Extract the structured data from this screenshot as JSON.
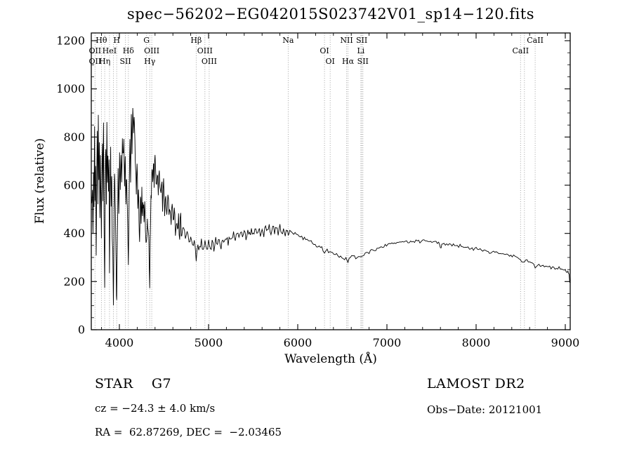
{
  "title": "spec−56202−EG042015S023742V01_sp14−120.fits",
  "annotations": {
    "class_label": "STAR    G7",
    "survey": "LAMOST DR2",
    "cz": "cz = −24.3 ± 4.0 km/s",
    "obs_date": "Obs−Date: 20121001",
    "radec": "RA =  62.87269, DEC =  −2.03465"
  },
  "chart_data": {
    "type": "line",
    "title": "spec−56202−EG042015S023742V01_sp14−120.fits",
    "xlabel": "Wavelength (Å)",
    "ylabel": "Flux (relative)",
    "xlim": [
      3685,
      9055
    ],
    "ylim": [
      0,
      1232
    ],
    "x_ticks": [
      4000,
      5000,
      6000,
      7000,
      8000,
      9000
    ],
    "y_ticks": [
      0,
      200,
      400,
      600,
      800,
      1000,
      1200
    ],
    "grid": false,
    "line_color": "#000000",
    "marker_line_color": "#999999",
    "line_markers": [
      {
        "label": "Hθ",
        "wavelength": 3798,
        "row": 0
      },
      {
        "label": "H",
        "wavelength": 3970,
        "row": 0
      },
      {
        "label": "G",
        "wavelength": 4305,
        "row": 0
      },
      {
        "label": "Hβ",
        "wavelength": 4861,
        "row": 0
      },
      {
        "label": "Na",
        "wavelength": 5893,
        "row": 0
      },
      {
        "label": "NII",
        "wavelength": 6548,
        "row": 0
      },
      {
        "label": "SII",
        "wavelength": 6717,
        "row": 0
      },
      {
        "label": "CaII",
        "wavelength": 8662,
        "row": 0
      },
      {
        "label": "OII",
        "wavelength": 3727,
        "row": 1
      },
      {
        "label": "HeI",
        "wavelength": 3889,
        "row": 1
      },
      {
        "label": "Hδ",
        "wavelength": 4101,
        "row": 1
      },
      {
        "label": "OIII",
        "wavelength": 4363,
        "row": 1
      },
      {
        "label": "OIII",
        "wavelength": 4959,
        "row": 1
      },
      {
        "label": "OI",
        "wavelength": 6300,
        "row": 1
      },
      {
        "label": "Li",
        "wavelength": 6708,
        "row": 1
      },
      {
        "label": "CaII",
        "wavelength": 8498,
        "row": 1
      },
      {
        "label": "OII",
        "wavelength": 3727,
        "row": 2
      },
      {
        "label": "Hη",
        "wavelength": 3835,
        "row": 2
      },
      {
        "label": "SII",
        "wavelength": 4068,
        "row": 2
      },
      {
        "label": "Hγ",
        "wavelength": 4340,
        "row": 2
      },
      {
        "label": "OIII",
        "wavelength": 5007,
        "row": 2
      },
      {
        "label": "OI",
        "wavelength": 6364,
        "row": 2
      },
      {
        "label": "Hα",
        "wavelength": 6563,
        "row": 2
      },
      {
        "label": "SII",
        "wavelength": 6731,
        "row": 2
      }
    ],
    "extra_marker_lines": [
      3933,
      8542
    ],
    "jitter": {
      "seed": 20121001,
      "subdivide": 2,
      "bands": [
        [
          3685,
          4700,
          40
        ],
        [
          4700,
          5900,
          16
        ],
        [
          5900,
          7000,
          8
        ],
        [
          7000,
          9060,
          6
        ]
      ]
    },
    "spectrum": [
      [
        3690,
        540
      ],
      [
        3698,
        620
      ],
      [
        3704,
        360
      ],
      [
        3710,
        680
      ],
      [
        3716,
        540
      ],
      [
        3722,
        820
      ],
      [
        3727,
        500
      ],
      [
        3734,
        700
      ],
      [
        3740,
        300
      ],
      [
        3746,
        640
      ],
      [
        3752,
        860
      ],
      [
        3758,
        560
      ],
      [
        3764,
        900
      ],
      [
        3770,
        620
      ],
      [
        3776,
        760
      ],
      [
        3782,
        430
      ],
      [
        3788,
        700
      ],
      [
        3794,
        540
      ],
      [
        3798,
        350
      ],
      [
        3804,
        660
      ],
      [
        3810,
        760
      ],
      [
        3816,
        560
      ],
      [
        3822,
        870
      ],
      [
        3828,
        420
      ],
      [
        3835,
        150
      ],
      [
        3842,
        600
      ],
      [
        3848,
        780
      ],
      [
        3854,
        540
      ],
      [
        3860,
        840
      ],
      [
        3866,
        650
      ],
      [
        3872,
        760
      ],
      [
        3878,
        600
      ],
      [
        3884,
        700
      ],
      [
        3889,
        260
      ],
      [
        3896,
        580
      ],
      [
        3902,
        720
      ],
      [
        3908,
        500
      ],
      [
        3914,
        660
      ],
      [
        3920,
        420
      ],
      [
        3926,
        300
      ],
      [
        3933,
        70
      ],
      [
        3940,
        460
      ],
      [
        3946,
        640
      ],
      [
        3952,
        540
      ],
      [
        3958,
        440
      ],
      [
        3964,
        250
      ],
      [
        3970,
        90
      ],
      [
        3978,
        420
      ],
      [
        3986,
        640
      ],
      [
        3994,
        520
      ],
      [
        4002,
        700
      ],
      [
        4010,
        580
      ],
      [
        4018,
        760
      ],
      [
        4026,
        640
      ],
      [
        4034,
        820
      ],
      [
        4042,
        700
      ],
      [
        4050,
        780
      ],
      [
        4058,
        600
      ],
      [
        4066,
        700
      ],
      [
        4074,
        540
      ],
      [
        4082,
        640
      ],
      [
        4090,
        500
      ],
      [
        4101,
        290
      ],
      [
        4110,
        560
      ],
      [
        4118,
        760
      ],
      [
        4126,
        640
      ],
      [
        4134,
        860
      ],
      [
        4142,
        740
      ],
      [
        4150,
        900
      ],
      [
        4158,
        800
      ],
      [
        4166,
        915
      ],
      [
        4174,
        780
      ],
      [
        4182,
        700
      ],
      [
        4190,
        600
      ],
      [
        4198,
        660
      ],
      [
        4206,
        540
      ],
      [
        4214,
        600
      ],
      [
        4220,
        480
      ],
      [
        4227,
        380
      ],
      [
        4236,
        560
      ],
      [
        4244,
        480
      ],
      [
        4252,
        580
      ],
      [
        4260,
        460
      ],
      [
        4268,
        540
      ],
      [
        4276,
        430
      ],
      [
        4284,
        500
      ],
      [
        4292,
        420
      ],
      [
        4305,
        330
      ],
      [
        4314,
        470
      ],
      [
        4322,
        420
      ],
      [
        4330,
        380
      ],
      [
        4340,
        190
      ],
      [
        4350,
        480
      ],
      [
        4358,
        560
      ],
      [
        4366,
        660
      ],
      [
        4374,
        600
      ],
      [
        4382,
        720
      ],
      [
        4390,
        620
      ],
      [
        4400,
        700
      ],
      [
        4412,
        600
      ],
      [
        4424,
        680
      ],
      [
        4436,
        580
      ],
      [
        4448,
        650
      ],
      [
        4460,
        560
      ],
      [
        4472,
        620
      ],
      [
        4484,
        530
      ],
      [
        4496,
        590
      ],
      [
        4508,
        510
      ],
      [
        4520,
        560
      ],
      [
        4532,
        490
      ],
      [
        4544,
        540
      ],
      [
        4556,
        470
      ],
      [
        4568,
        520
      ],
      [
        4580,
        455
      ],
      [
        4592,
        500
      ],
      [
        4604,
        440
      ],
      [
        4616,
        485
      ],
      [
        4628,
        430
      ],
      [
        4640,
        470
      ],
      [
        4652,
        420
      ],
      [
        4664,
        455
      ],
      [
        4676,
        410
      ],
      [
        4688,
        445
      ],
      [
        4700,
        405
      ],
      [
        4720,
        430
      ],
      [
        4740,
        380
      ],
      [
        4760,
        420
      ],
      [
        4780,
        360
      ],
      [
        4800,
        400
      ],
      [
        4820,
        345
      ],
      [
        4840,
        385
      ],
      [
        4861,
        280
      ],
      [
        4880,
        360
      ],
      [
        4900,
        330
      ],
      [
        4920,
        365
      ],
      [
        4940,
        320
      ],
      [
        4960,
        355
      ],
      [
        4980,
        325
      ],
      [
        5000,
        360
      ],
      [
        5020,
        330
      ],
      [
        5040,
        365
      ],
      [
        5060,
        335
      ],
      [
        5080,
        370
      ],
      [
        5100,
        345
      ],
      [
        5120,
        375
      ],
      [
        5140,
        350
      ],
      [
        5160,
        380
      ],
      [
        5180,
        355
      ],
      [
        5200,
        385
      ],
      [
        5220,
        360
      ],
      [
        5240,
        390
      ],
      [
        5260,
        365
      ],
      [
        5280,
        395
      ],
      [
        5300,
        370
      ],
      [
        5320,
        400
      ],
      [
        5340,
        375
      ],
      [
        5360,
        405
      ],
      [
        5380,
        380
      ],
      [
        5400,
        410
      ],
      [
        5420,
        385
      ],
      [
        5440,
        415
      ],
      [
        5460,
        390
      ],
      [
        5480,
        420
      ],
      [
        5500,
        395
      ],
      [
        5520,
        420
      ],
      [
        5540,
        395
      ],
      [
        5560,
        425
      ],
      [
        5580,
        400
      ],
      [
        5600,
        430
      ],
      [
        5620,
        400
      ],
      [
        5640,
        430
      ],
      [
        5660,
        405
      ],
      [
        5680,
        430
      ],
      [
        5700,
        405
      ],
      [
        5720,
        430
      ],
      [
        5740,
        405
      ],
      [
        5760,
        425
      ],
      [
        5780,
        400
      ],
      [
        5800,
        425
      ],
      [
        5820,
        400
      ],
      [
        5840,
        420
      ],
      [
        5860,
        395
      ],
      [
        5880,
        415
      ],
      [
        5893,
        385
      ],
      [
        5910,
        405
      ],
      [
        5940,
        395
      ],
      [
        5970,
        400
      ],
      [
        6000,
        390
      ],
      [
        6030,
        385
      ],
      [
        6060,
        380
      ],
      [
        6090,
        372
      ],
      [
        6120,
        376
      ],
      [
        6150,
        365
      ],
      [
        6180,
        360
      ],
      [
        6210,
        352
      ],
      [
        6240,
        348
      ],
      [
        6270,
        340
      ],
      [
        6300,
        325
      ],
      [
        6330,
        330
      ],
      [
        6360,
        318
      ],
      [
        6390,
        322
      ],
      [
        6420,
        312
      ],
      [
        6450,
        308
      ],
      [
        6480,
        302
      ],
      [
        6510,
        298
      ],
      [
        6540,
        296
      ],
      [
        6563,
        286
      ],
      [
        6590,
        298
      ],
      [
        6620,
        302
      ],
      [
        6650,
        300
      ],
      [
        6680,
        308
      ],
      [
        6710,
        304
      ],
      [
        6740,
        312
      ],
      [
        6770,
        318
      ],
      [
        6800,
        324
      ],
      [
        6830,
        328
      ],
      [
        6860,
        334
      ],
      [
        6890,
        338
      ],
      [
        6920,
        344
      ],
      [
        6950,
        348
      ],
      [
        6980,
        352
      ],
      [
        7010,
        354
      ],
      [
        7040,
        358
      ],
      [
        7070,
        356
      ],
      [
        7100,
        362
      ],
      [
        7130,
        358
      ],
      [
        7160,
        366
      ],
      [
        7190,
        360
      ],
      [
        7220,
        368
      ],
      [
        7250,
        363
      ],
      [
        7280,
        370
      ],
      [
        7310,
        364
      ],
      [
        7340,
        372
      ],
      [
        7370,
        366
      ],
      [
        7400,
        371
      ],
      [
        7430,
        365
      ],
      [
        7460,
        369
      ],
      [
        7490,
        363
      ],
      [
        7520,
        367
      ],
      [
        7550,
        361
      ],
      [
        7580,
        358
      ],
      [
        7600,
        340
      ],
      [
        7615,
        350
      ],
      [
        7640,
        360
      ],
      [
        7670,
        353
      ],
      [
        7700,
        357
      ],
      [
        7730,
        350
      ],
      [
        7760,
        353
      ],
      [
        7790,
        346
      ],
      [
        7820,
        349
      ],
      [
        7850,
        342
      ],
      [
        7880,
        345
      ],
      [
        7910,
        338
      ],
      [
        7940,
        341
      ],
      [
        7970,
        334
      ],
      [
        8000,
        337
      ],
      [
        8030,
        330
      ],
      [
        8060,
        333
      ],
      [
        8090,
        326
      ],
      [
        8120,
        329
      ],
      [
        8150,
        322
      ],
      [
        8180,
        325
      ],
      [
        8210,
        318
      ],
      [
        8240,
        321
      ],
      [
        8270,
        314
      ],
      [
        8300,
        317
      ],
      [
        8330,
        310
      ],
      [
        8360,
        313
      ],
      [
        8390,
        306
      ],
      [
        8420,
        308
      ],
      [
        8450,
        302
      ],
      [
        8480,
        296
      ],
      [
        8510,
        288
      ],
      [
        8542,
        280
      ],
      [
        8570,
        288
      ],
      [
        8600,
        282
      ],
      [
        8630,
        272
      ],
      [
        8662,
        262
      ],
      [
        8690,
        272
      ],
      [
        8720,
        266
      ],
      [
        8750,
        270
      ],
      [
        8780,
        262
      ],
      [
        8810,
        265
      ],
      [
        8840,
        257
      ],
      [
        8870,
        260
      ],
      [
        8900,
        253
      ],
      [
        8930,
        256
      ],
      [
        8960,
        248
      ],
      [
        8990,
        250
      ],
      [
        9010,
        244
      ],
      [
        9030,
        240
      ],
      [
        9042,
        230
      ],
      [
        9050,
        195
      ]
    ]
  }
}
